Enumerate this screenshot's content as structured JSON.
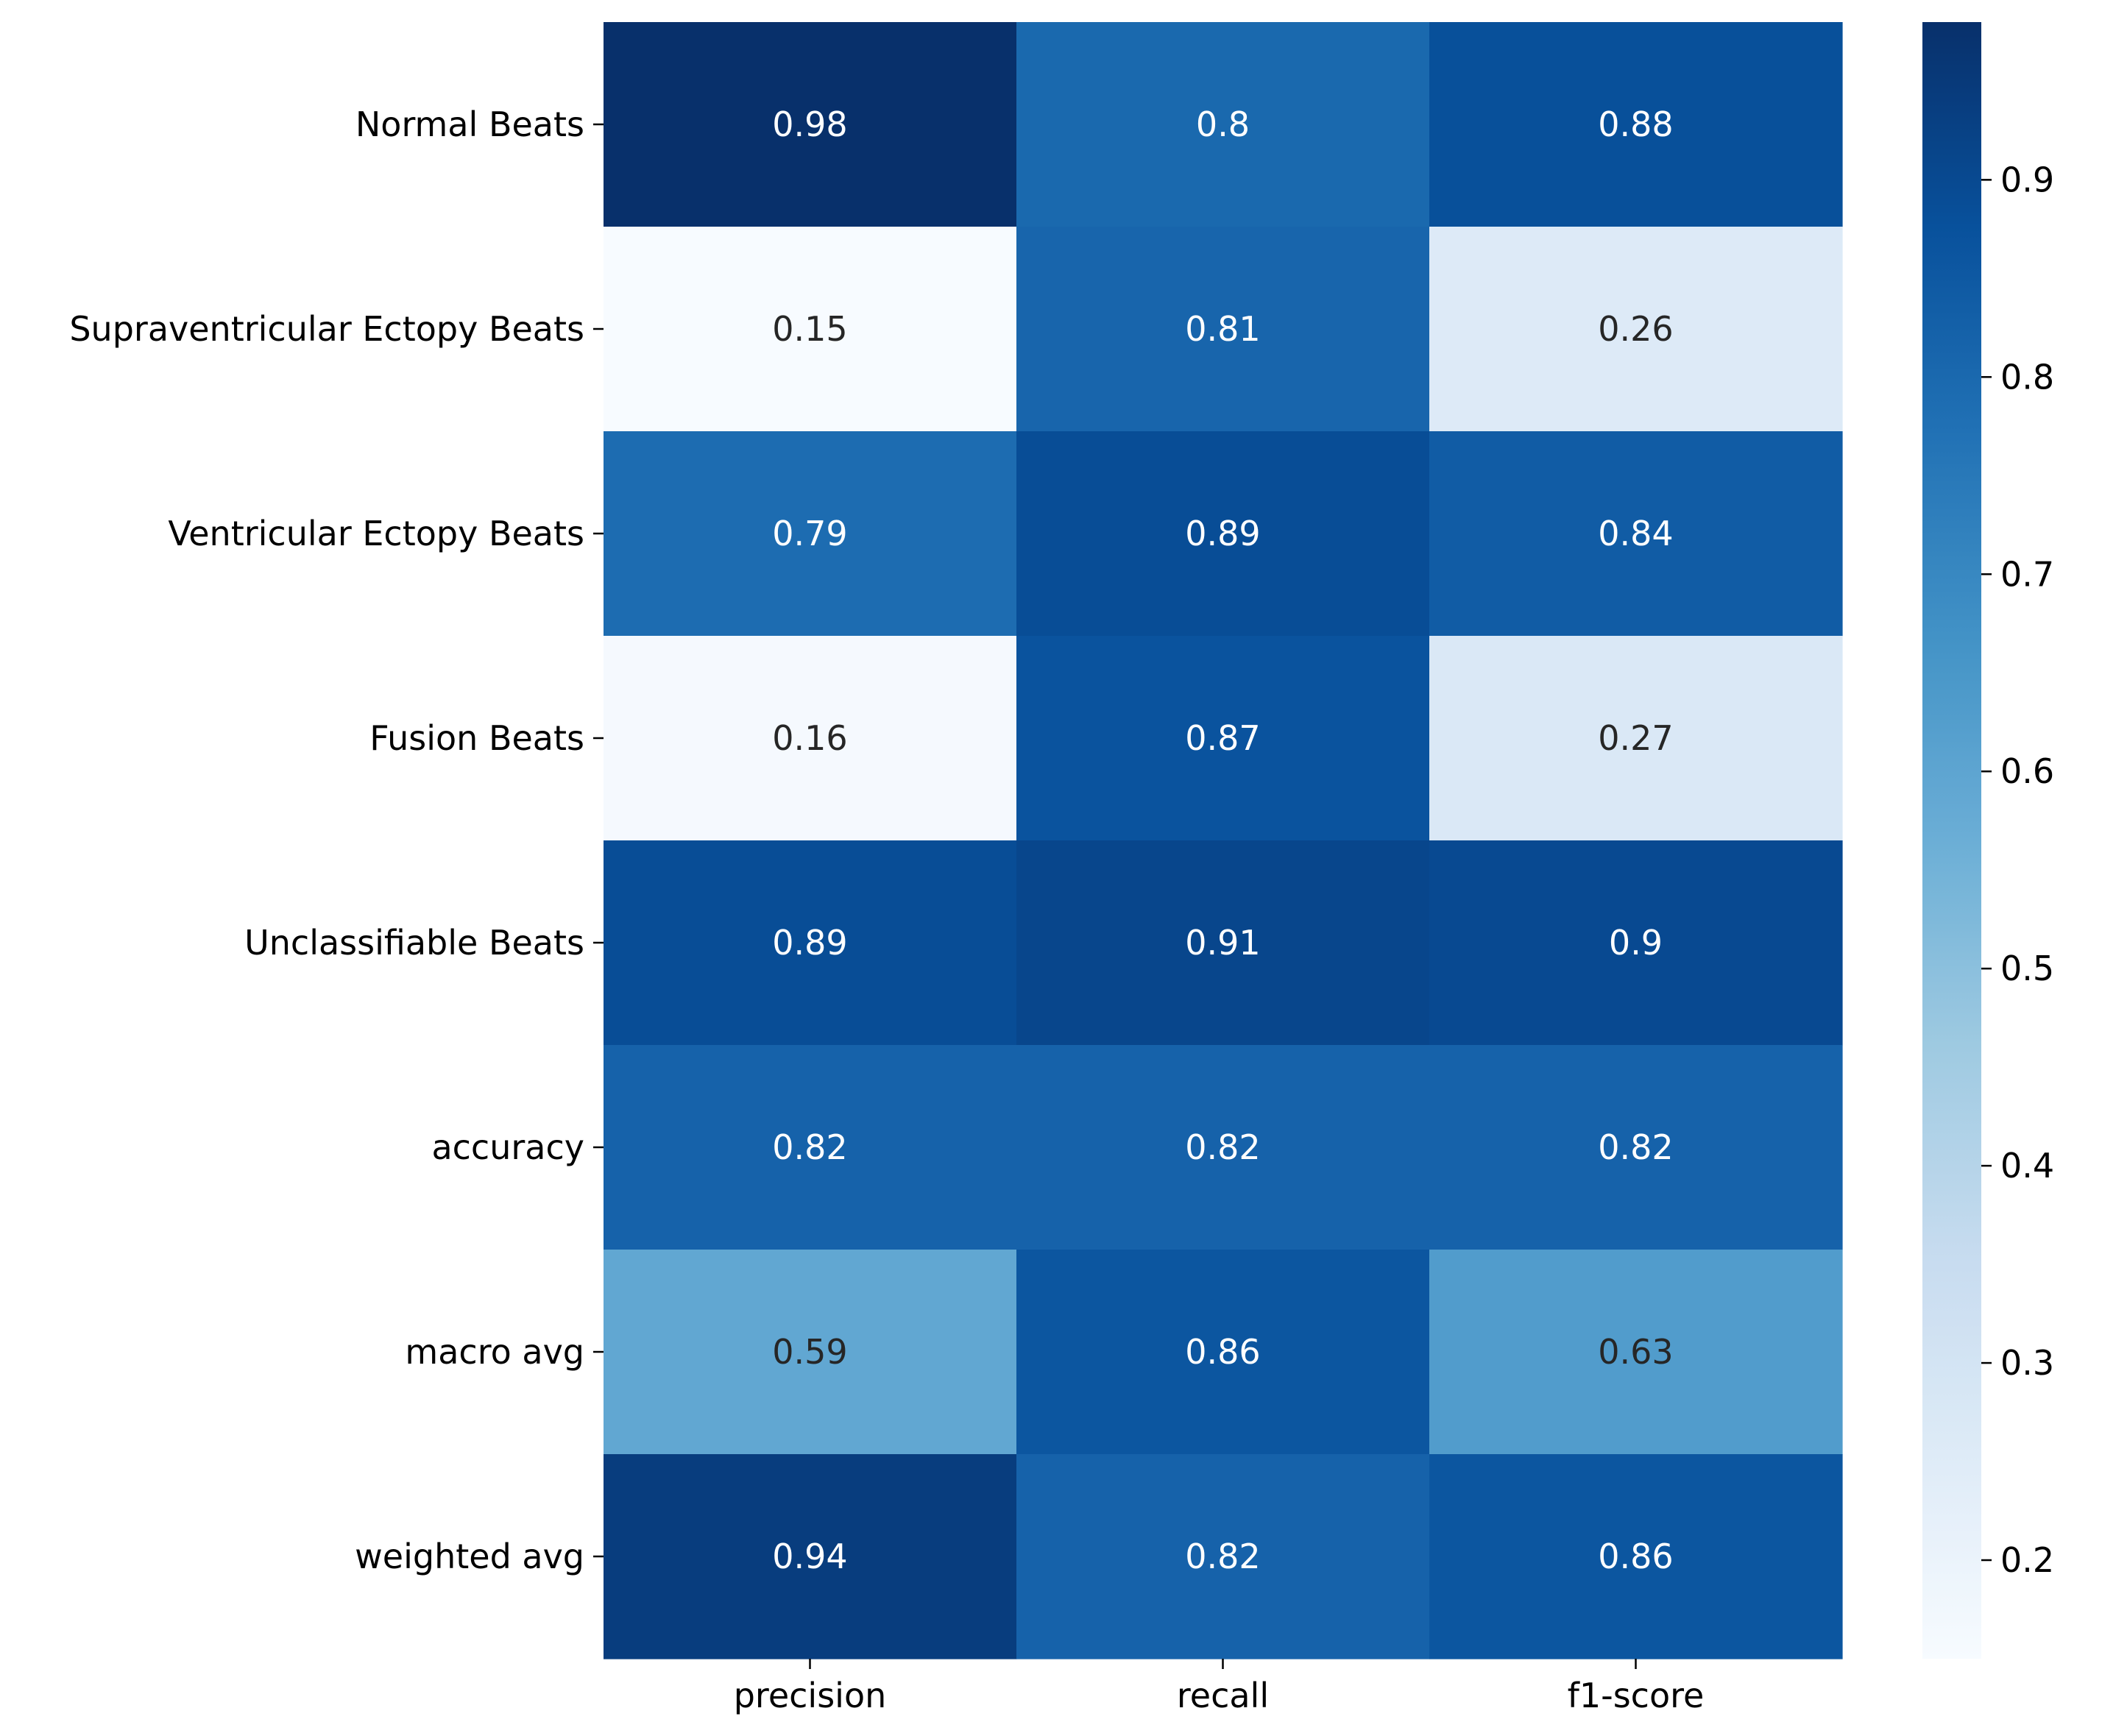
{
  "chart_data": {
    "type": "heatmap",
    "title": "",
    "xlabel": "",
    "ylabel": "",
    "columns": [
      "precision",
      "recall",
      "f1-score"
    ],
    "rows": [
      "Normal Beats",
      "Supraventricular Ectopy Beats",
      "Ventricular Ectopy Beats",
      "Fusion Beats",
      "Unclassifiable Beats",
      "accuracy",
      "macro avg",
      "weighted avg"
    ],
    "values": [
      [
        0.98,
        0.8,
        0.88
      ],
      [
        0.15,
        0.81,
        0.26
      ],
      [
        0.79,
        0.89,
        0.84
      ],
      [
        0.16,
        0.87,
        0.27
      ],
      [
        0.89,
        0.91,
        0.9
      ],
      [
        0.82,
        0.82,
        0.82
      ],
      [
        0.59,
        0.86,
        0.63
      ],
      [
        0.94,
        0.82,
        0.86
      ]
    ],
    "annotations": [
      [
        "0.98",
        "0.8",
        "0.88"
      ],
      [
        "0.15",
        "0.81",
        "0.26"
      ],
      [
        "0.79",
        "0.89",
        "0.84"
      ],
      [
        "0.16",
        "0.87",
        "0.27"
      ],
      [
        "0.89",
        "0.91",
        "0.9"
      ],
      [
        "0.82",
        "0.82",
        "0.82"
      ],
      [
        "0.59",
        "0.86",
        "0.63"
      ],
      [
        "0.94",
        "0.82",
        "0.86"
      ]
    ],
    "colormap": "Blues",
    "colorbar": {
      "range": [
        0.15,
        0.98
      ],
      "ticks": [
        0.2,
        0.3,
        0.4,
        0.5,
        0.6,
        0.7,
        0.8,
        0.9
      ],
      "tick_labels": [
        "0.2",
        "0.3",
        "0.4",
        "0.5",
        "0.6",
        "0.7",
        "0.8",
        "0.9"
      ]
    },
    "grid": false
  }
}
